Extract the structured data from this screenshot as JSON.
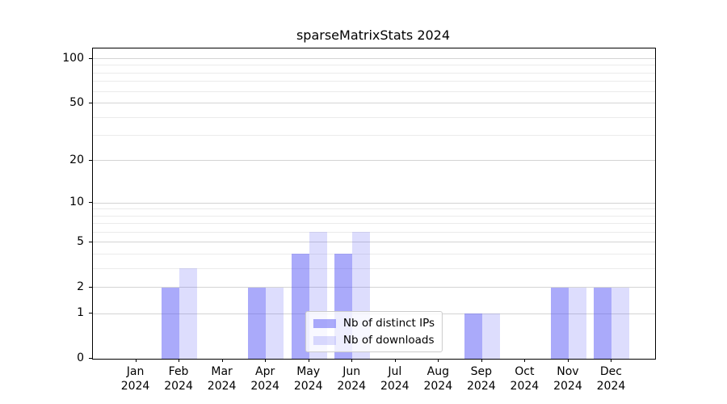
{
  "title": "sparseMatrixStats 2024",
  "colors": {
    "bar_ips": "rgba(85,85,245,0.5)",
    "bar_downloads": "rgba(85,85,245,0.2)",
    "grid_major": "#d4d4d4",
    "grid_minor": "#ebebeb",
    "axis": "#000000",
    "legend_border": "#cccccc",
    "text": "#000000"
  },
  "legend": {
    "items": [
      {
        "label": "Nb of distinct IPs",
        "color_key": "bar_ips"
      },
      {
        "label": "Nb of downloads",
        "color_key": "bar_downloads"
      }
    ]
  },
  "chart_data": {
    "type": "bar",
    "title": "sparseMatrixStats 2024",
    "categories": [
      "Jan",
      "Feb",
      "Mar",
      "Apr",
      "May",
      "Jun",
      "Jul",
      "Aug",
      "Sep",
      "Oct",
      "Nov",
      "Dec"
    ],
    "category_year": "2024",
    "series": [
      {
        "name": "Nb of distinct IPs",
        "values": [
          0,
          2,
          0,
          2,
          4,
          4,
          0,
          0,
          1,
          0,
          2,
          2
        ]
      },
      {
        "name": "Nb of downloads",
        "values": [
          0,
          3,
          0,
          2,
          6,
          6,
          0,
          0,
          1,
          0,
          2,
          2
        ]
      }
    ],
    "xlabel": "",
    "ylabel": "",
    "yscale": "log1p",
    "ylim": [
      0,
      117
    ],
    "yticks": [
      0,
      1,
      2,
      5,
      10,
      20,
      50,
      100
    ],
    "minor_gridlines": [
      3,
      4,
      6,
      7,
      8,
      9,
      30,
      40,
      60,
      70,
      80,
      90
    ],
    "grid": true,
    "legend_position": "lower center"
  }
}
